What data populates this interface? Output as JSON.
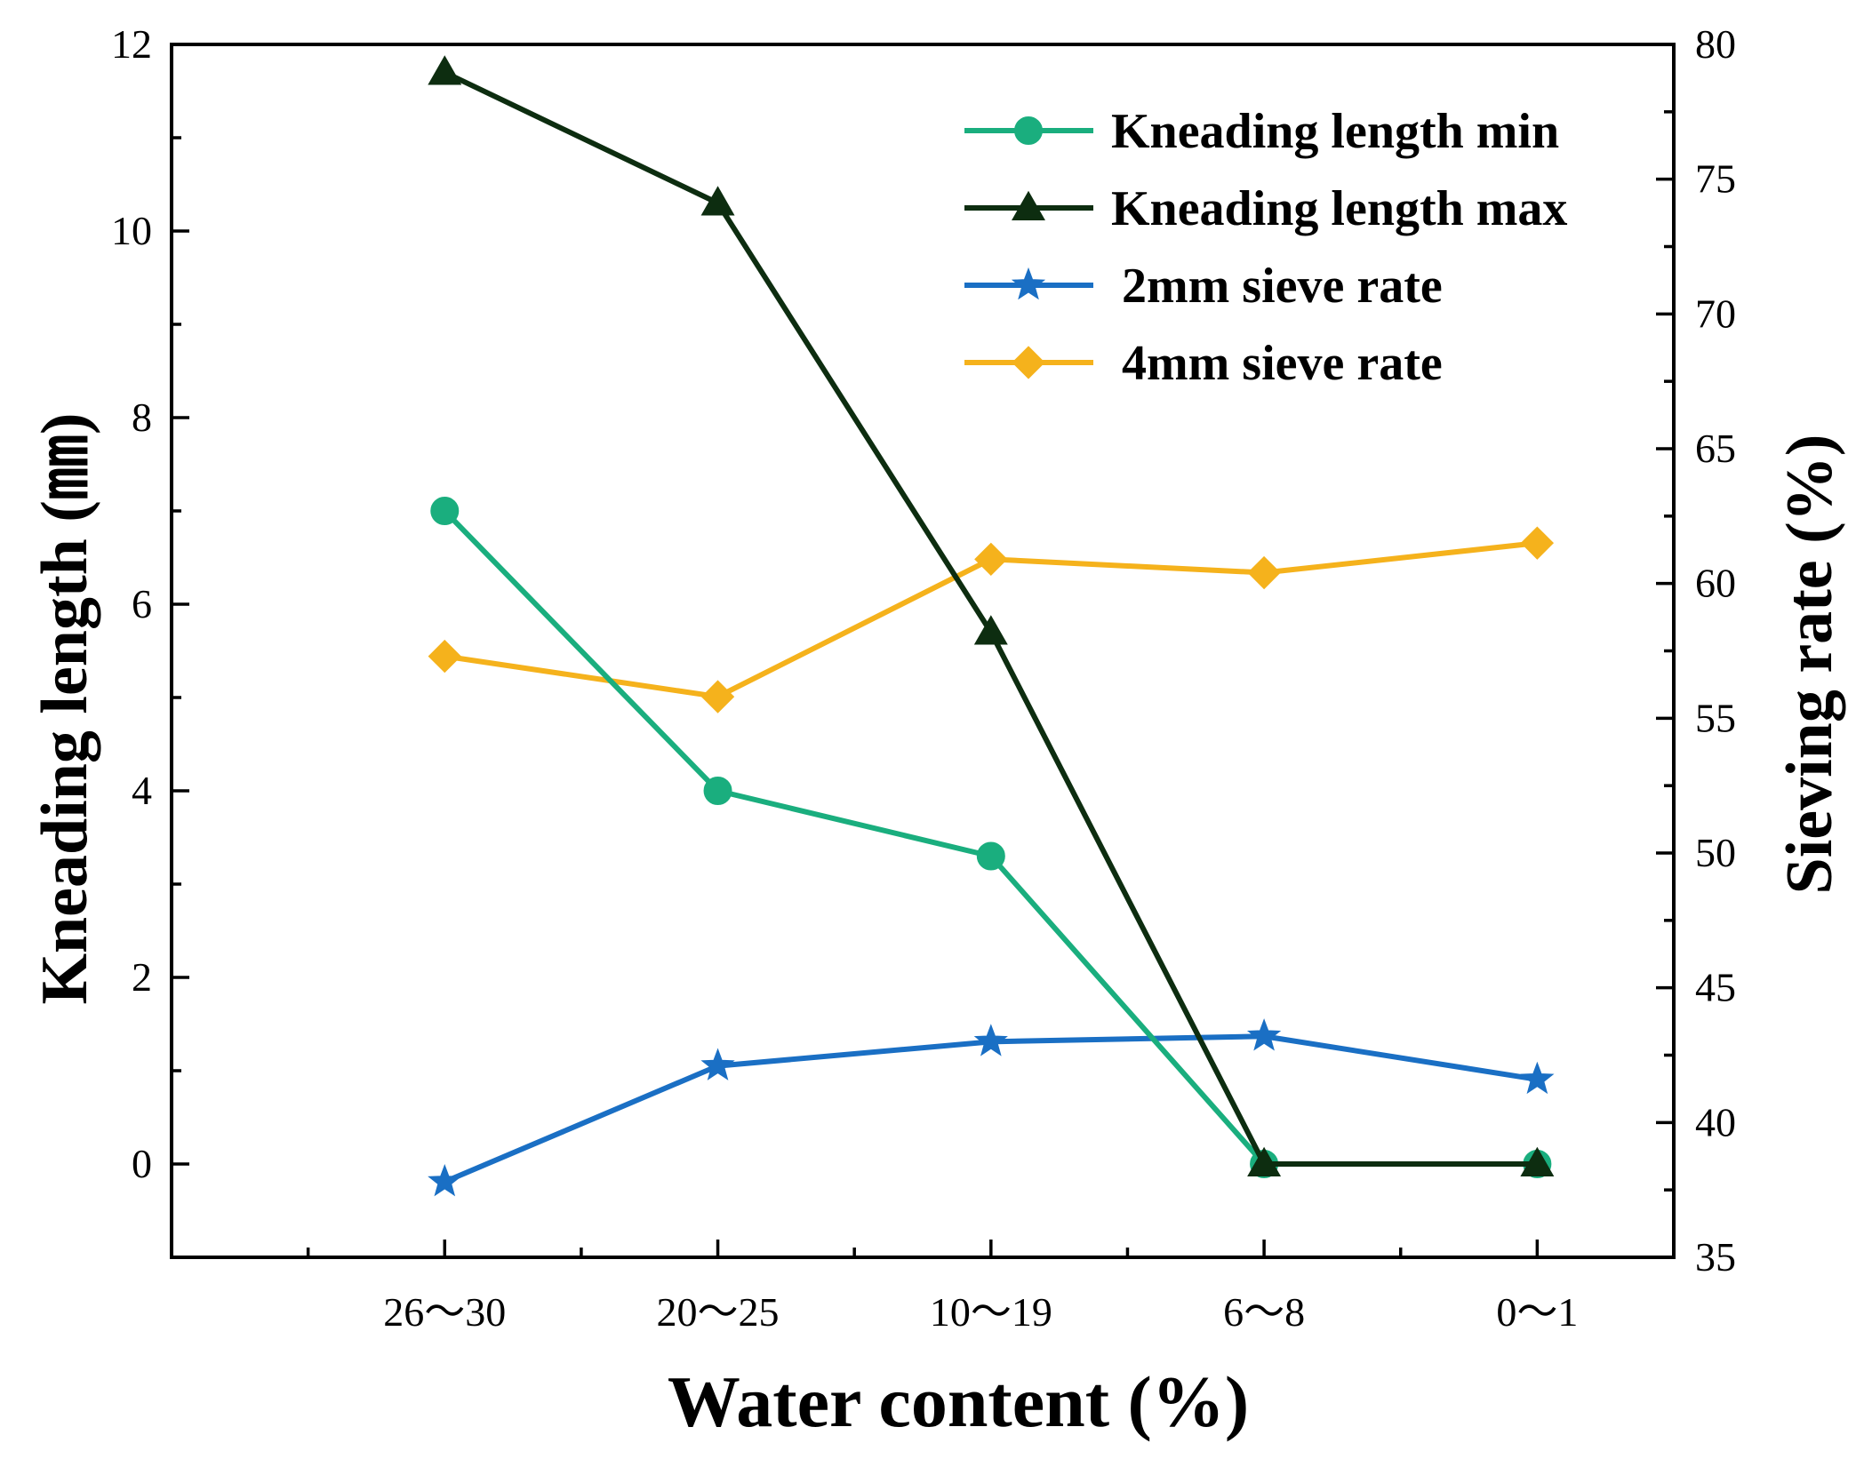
{
  "chart_data": {
    "type": "line",
    "title": "",
    "xlabel": "Water content (%)",
    "ylabel_left": "Kneading length (㎜)",
    "ylabel_right": "Sieving rate (%)",
    "categories": [
      "26～30",
      "20～25",
      "10～19",
      "6～8",
      "0～1"
    ],
    "ylim_left": [
      -1,
      12
    ],
    "yticks_left": [
      0,
      2,
      4,
      6,
      8,
      10,
      12
    ],
    "ylim_right": [
      35,
      80
    ],
    "yticks_right": [
      35,
      40,
      45,
      50,
      55,
      60,
      65,
      70,
      75,
      80
    ],
    "grid": false,
    "legend_position": "top-right",
    "series": [
      {
        "name": "Kneading length min",
        "axis": "left",
        "color": "#1aae7e",
        "marker": "circle",
        "values": [
          7.0,
          4.0,
          3.3,
          0.0,
          0.0
        ]
      },
      {
        "name": "Kneading length max",
        "axis": "left",
        "color": "#0d2d10",
        "marker": "triangle",
        "values": [
          11.7,
          10.3,
          5.7,
          0.0,
          0.0
        ]
      },
      {
        "name": "2mm sieve rate",
        "axis": "right",
        "color": "#1a6fc4",
        "marker": "star",
        "values": [
          37.8,
          42.1,
          43.0,
          43.2,
          41.6
        ]
      },
      {
        "name": "4mm sieve rate",
        "axis": "right",
        "color": "#f5b21c",
        "marker": "diamond",
        "values": [
          57.3,
          55.8,
          60.9,
          60.4,
          61.5
        ]
      }
    ]
  }
}
